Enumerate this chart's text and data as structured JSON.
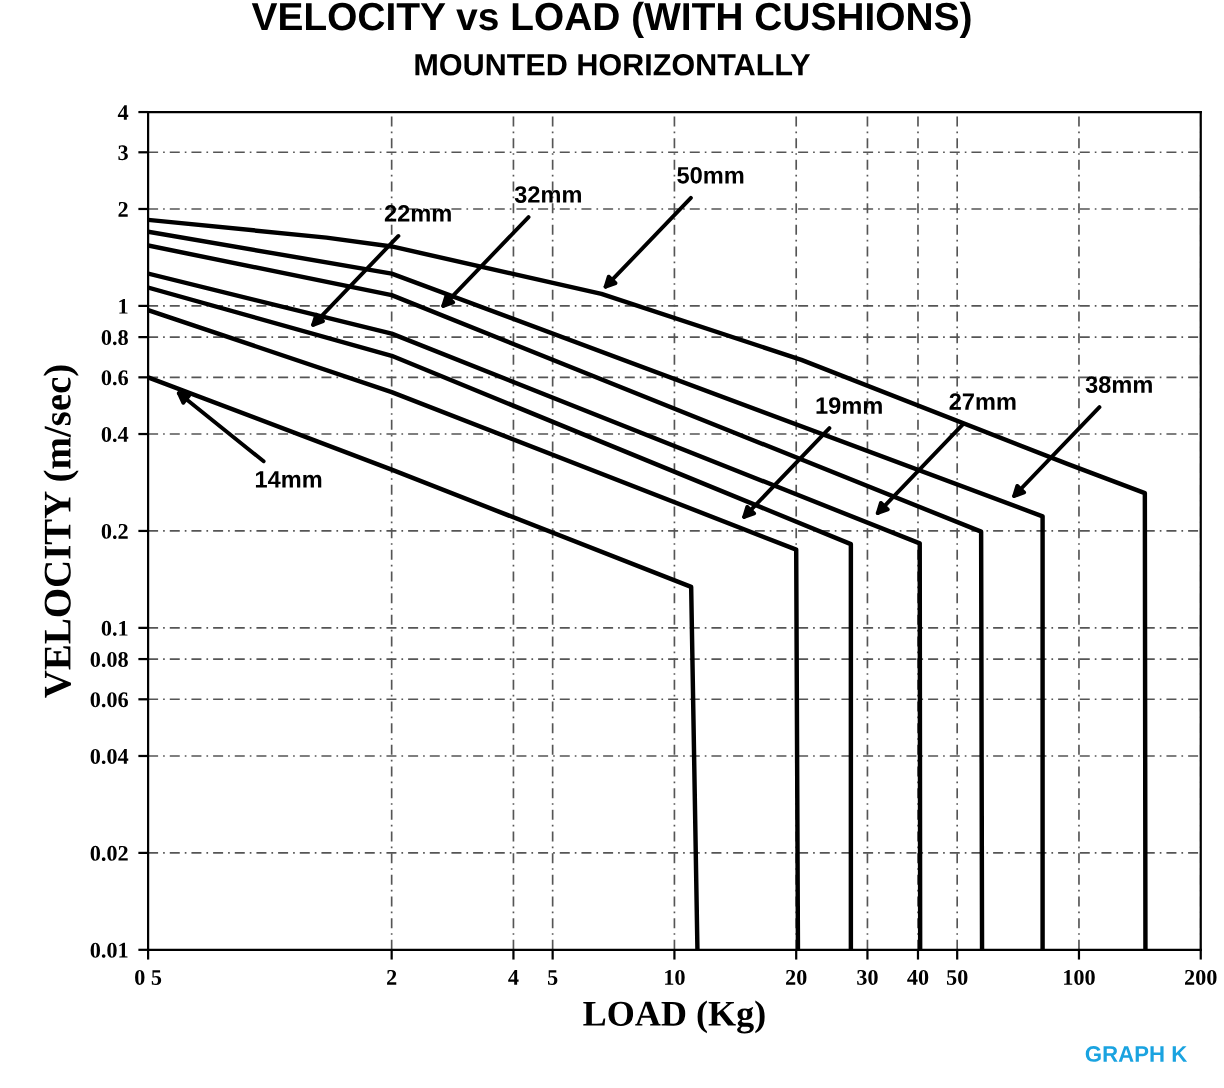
{
  "chart_data": {
    "type": "line",
    "title": "VELOCITY vs LOAD (WITH CUSHIONS)",
    "subtitle": "MOUNTED HORIZONTALLY",
    "xlabel": "LOAD (Kg)",
    "ylabel": "VELOCITY (m/sec)",
    "log": "xy",
    "grid": true,
    "line_style": "solid",
    "marker": "none",
    "xlim": [
      0.5,
      200
    ],
    "ylim": [
      0.01,
      4
    ],
    "xticks": [
      {
        "value": 0.5,
        "label": "0 5"
      },
      2,
      4,
      5,
      10,
      20,
      30,
      40,
      50,
      100,
      200
    ],
    "yticks": [
      0.01,
      0.02,
      0.04,
      0.06,
      0.08,
      0.1,
      0.2,
      0.4,
      0.6,
      0.8,
      1,
      2,
      3,
      4
    ],
    "series": [
      {
        "color": "#000000",
        "x": [
          0.5,
          1.38,
          2,
          6.6,
          20.6,
          93.6,
          145.5,
          146
        ],
        "values": [
          1.85,
          1.63,
          1.53,
          1.09,
          0.68,
          0.323,
          0.262,
          0.01
        ]
      },
      {
        "color": "#000000",
        "x": [
          0.5,
          2,
          81.3,
          81.3
        ],
        "values": [
          1.7,
          1.26,
          0.222,
          0.01
        ]
      },
      {
        "color": "#000000",
        "x": [
          0.5,
          2,
          57.3,
          57.6
        ],
        "values": [
          1.54,
          1.08,
          0.199,
          0.01
        ]
      },
      {
        "color": "#000000",
        "x": [
          0.5,
          2,
          40.4,
          40.5
        ],
        "values": [
          1.26,
          0.82,
          0.183,
          0.01
        ]
      },
      {
        "color": "#000000",
        "x": [
          0.5,
          2,
          27.3,
          27.3
        ],
        "values": [
          1.14,
          0.7,
          0.182,
          0.01
        ]
      },
      {
        "color": "#000000",
        "x": [
          0.5,
          2,
          20.0,
          20.2
        ],
        "values": [
          0.97,
          0.54,
          0.175,
          0.01
        ]
      },
      {
        "color": "#000000",
        "x": [
          0.5,
          2,
          11.0,
          11.4
        ],
        "values": [
          0.6,
          0.31,
          0.134,
          0.01
        ]
      }
    ],
    "annotations": [
      {
        "text": "50mm",
        "x": 6.5,
        "y": 1.09
      },
      {
        "text": "32mm",
        "x": 2.58,
        "y": 0.95
      },
      {
        "text": "22mm",
        "x": 1.23,
        "y": 0.83
      },
      {
        "text": "14mm",
        "x": 0.57,
        "y": 0.56
      },
      {
        "text": "19mm",
        "x": 14.3,
        "y": 0.21
      },
      {
        "text": "27mm",
        "x": 30.6,
        "y": 0.216
      },
      {
        "text": "38mm",
        "x": 66.5,
        "y": 0.244
      },
      "GRAPH K"
    ]
  }
}
